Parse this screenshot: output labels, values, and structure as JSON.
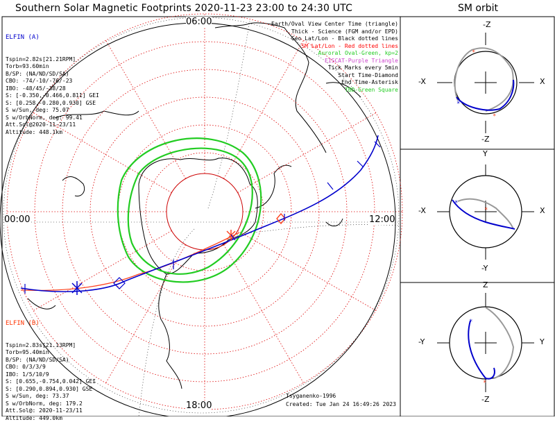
{
  "title": "Southern Solar Magnetic Footprints 2020-11-23 23:00 to 24:30 UTC",
  "orbit_title": "SM orbit",
  "time_labels": {
    "top": "06:00",
    "left": "00:00",
    "right": "12:00",
    "bottom": "18:00"
  },
  "elfin_a": {
    "header": "ELFIN (A)",
    "color": "#0000cc",
    "lines": [
      "Tspin=2.82s[21.21RPM]",
      "Torb=93.60min",
      "B/SP: (NA/ND/SD/SA)",
      "CBO: -74/-10/-76/-23",
      "IBO: -48/45/-38/28",
      "S: [-0.350,-0.466,0.811] GEI",
      "S: [0.258,-0.280,0.930] GSE",
      "S w/Sun, deg: 75.07",
      "S w/OrbNorm, deg: 99.41",
      "Att.Sol@2020-11-23/11",
      "Altitude: 448.1km"
    ]
  },
  "elfin_b": {
    "header": "ELFIN (B)",
    "color": "#ff3300",
    "lines": [
      "Tspin=2.83s[21.13RPM]",
      "Torb=95.40min",
      "B/SP: (NA/ND/SD/SA)",
      "CBO: 0/3/3/9",
      "IBO: 1/5/10/9",
      "S: [0.655,-0.754,0.042] GEI",
      "S: [0.290,0.894,0.930] GSE",
      "S w/Sun, deg: 73.37",
      "S w/OrbNorm, deg: 179.2",
      "Att.Sol@: 2020-11-23/11",
      "Altitude: 449.0km"
    ]
  },
  "legend": [
    {
      "text": "Earth/Oval View Center Time (triangle)",
      "color": "#000000"
    },
    {
      "text": "Thick - Science (FGM and/or EPD)",
      "color": "#000000"
    },
    {
      "text": "Geo Lat/Lon - Black dotted lines",
      "color": "#000000"
    },
    {
      "text": "SM Lat/Lon - Red dotted lines",
      "color": "#ff0000"
    },
    {
      "text": "Auroral Oval-Green, kp=2",
      "color": "#22cc22"
    },
    {
      "text": "EISCAT-Purple Triangle",
      "color": "#cc44cc"
    },
    {
      "text": "Tick Marks every 5min",
      "color": "#000000"
    },
    {
      "text": "Start Time-Diamond",
      "color": "#000000"
    },
    {
      "text": "End Time-Asterisk",
      "color": "#000000"
    },
    {
      "text": "TBD-Green Square",
      "color": "#22cc22"
    }
  ],
  "footnotes": {
    "model": "Tsyganenko-1996",
    "created": "Created: Tue Jan 24 16:49:26 2023"
  },
  "orbit_panels": [
    {
      "top": "-Z",
      "bottom": "-Z",
      "left": "-X",
      "right": "X"
    },
    {
      "top": "Y",
      "bottom": "-Y",
      "left": "-X",
      "right": "X"
    },
    {
      "top": "Z",
      "bottom": "-Z",
      "left": "-Y",
      "right": "Y"
    }
  ],
  "colors": {
    "elfin_a": "#0000cc",
    "elfin_b": "#ff4422",
    "oval": "#22cc22",
    "sm_grid": "#dd0000"
  }
}
